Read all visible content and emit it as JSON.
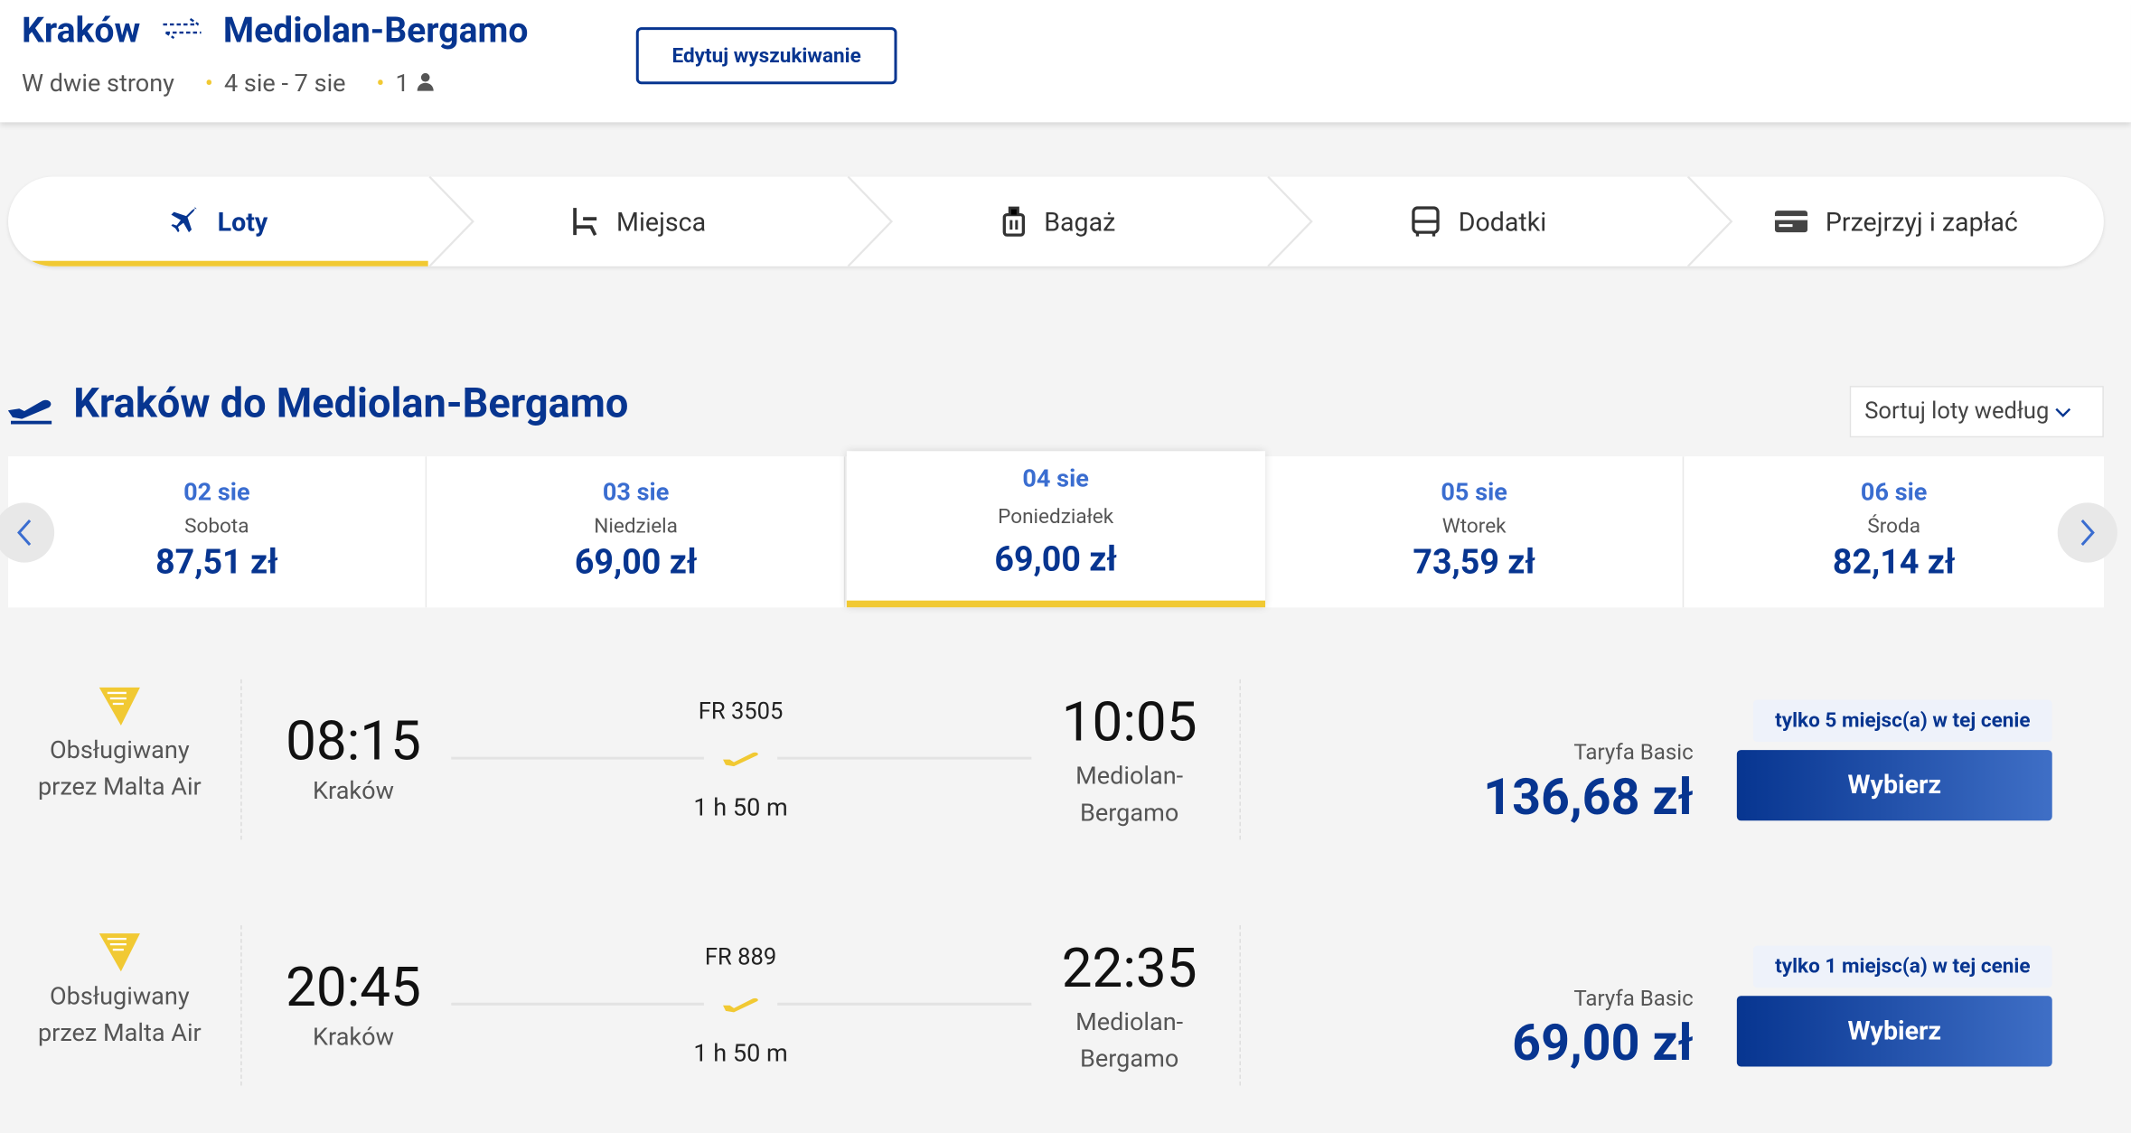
{
  "header": {
    "origin": "Kraków",
    "destination": "Mediolan-Bergamo",
    "trip_type": "W dwie strony",
    "dates": "4 sie - 7 sie",
    "passengers": "1",
    "edit_button": "Edytuj wyszukiwanie"
  },
  "steps": [
    "Loty",
    "Miejsca",
    "Bagaż",
    "Dodatki",
    "Przejrzyj i zapłać"
  ],
  "section": {
    "title": "Kraków do Mediolan-Bergamo",
    "sort": "Sortuj loty według"
  },
  "dates": [
    {
      "date": "02 sie",
      "day": "Sobota",
      "price": "87,51 zł"
    },
    {
      "date": "03 sie",
      "day": "Niedziela",
      "price": "69,00 zł"
    },
    {
      "date": "04 sie",
      "day": "Poniedziałek",
      "price": "69,00 zł"
    },
    {
      "date": "05 sie",
      "day": "Wtorek",
      "price": "73,59 zł"
    },
    {
      "date": "06 sie",
      "day": "Środa",
      "price": "82,14 zł"
    }
  ],
  "flights": [
    {
      "operator": "Obsługiwany przez Malta Air",
      "departure_time": "08:15",
      "departure_city": "Kraków",
      "flight_number": "FR 3505",
      "duration": "1 h 50 m",
      "arrival_time": "10:05",
      "arrival_city": "Mediolan-Bergamo",
      "fare": "Taryfa Basic",
      "price": "136,68 zł",
      "availability": "tylko 5 miejsc(a) w tej cenie",
      "button": "Wybierz"
    },
    {
      "operator": "Obsługiwany przez Malta Air",
      "departure_time": "20:45",
      "departure_city": "Kraków",
      "flight_number": "FR 889",
      "duration": "1 h 50 m",
      "arrival_time": "22:35",
      "arrival_city": "Mediolan-Bergamo",
      "fare": "Taryfa Basic",
      "price": "69,00 zł",
      "availability": "tylko 1 miejsc(a) w tej cenie",
      "button": "Wybierz"
    }
  ]
}
